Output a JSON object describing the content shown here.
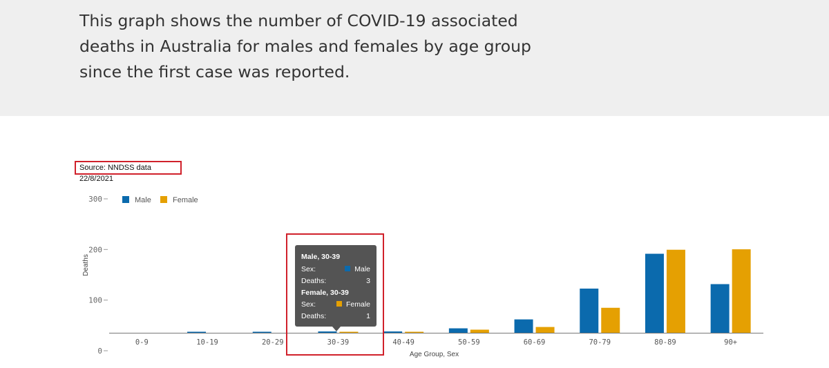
{
  "intro": {
    "line1": "This graph shows the number of COVID-19 associated",
    "line2": "deaths in Australia for males and females by age group",
    "line3": "since the first case was reported."
  },
  "source": "Source: NNDSS data 22/8/2021",
  "tooltip": {
    "male_header": "Male, 30-39",
    "female_header": "Female, 30-39",
    "sex_label": "Sex:",
    "deaths_label": "Deaths:",
    "male_value": "Male",
    "female_value": "Female",
    "male_deaths": "3",
    "female_deaths": "1"
  },
  "colors": {
    "male": "#0b6aad",
    "female": "#e5a002",
    "highlight": "#d0202a"
  },
  "chart_data": {
    "type": "bar",
    "title": "",
    "xlabel": "Age Group, Sex",
    "ylabel": "Deaths",
    "ylim": [
      0,
      300
    ],
    "yticks": [
      0,
      100,
      200,
      300
    ],
    "ytick_labels": [
      "0",
      "100",
      "200",
      "300"
    ],
    "categories": [
      "0-9",
      "10-19",
      "20-29",
      "30-39",
      "40-49",
      "50-59",
      "60-69",
      "70-79",
      "80-89",
      "90+"
    ],
    "series": [
      {
        "name": "Male",
        "values": [
          0,
          1,
          2,
          3,
          3,
          10,
          30,
          99,
          177,
          109
        ]
      },
      {
        "name": "Female",
        "values": [
          0,
          0,
          0,
          1,
          2,
          7,
          13,
          56,
          186,
          187
        ]
      }
    ],
    "legend": "top-left",
    "grid": false
  }
}
